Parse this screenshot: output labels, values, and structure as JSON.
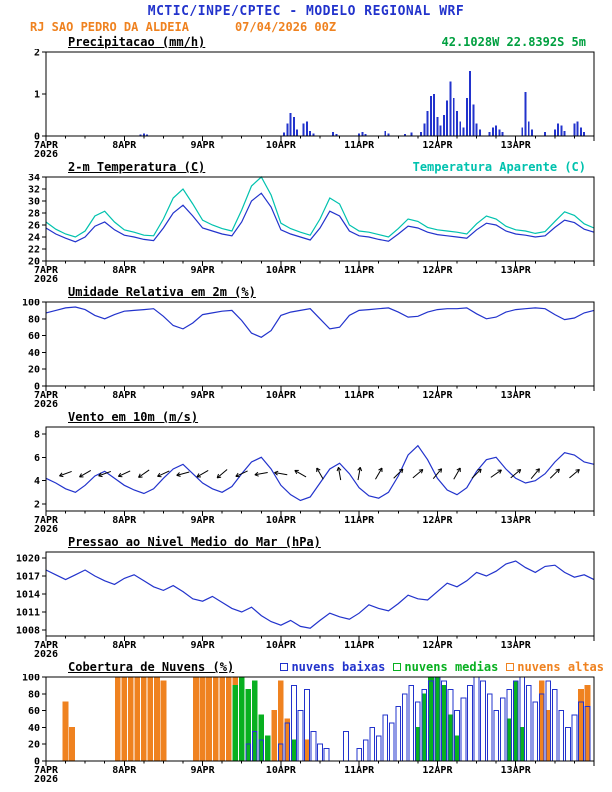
{
  "header": {
    "title": "MCTIC/INPE/CPTEC - MODELO REGIONAL WRF",
    "station": "RJ SAO PEDRO DA ALDEIA",
    "run_datetime": "07/04/2026 00Z",
    "coords": "42.1028W 22.8392S 5m",
    "title_color": "#2233cc",
    "station_color": "#ef8220",
    "coords_color": "#00a040"
  },
  "x_axis": {
    "hours_total": 168,
    "major_tick_hours": 24,
    "minor_tick_hours": 6,
    "day_labels": [
      "7APR",
      "8APR",
      "9APR",
      "10APR",
      "11APR",
      "12APR",
      "13APR"
    ],
    "year_label": "2026"
  },
  "chart_data": [
    {
      "type": "bar",
      "title": "Precipitacao (mm/h)",
      "ylim": [
        0,
        2
      ],
      "yticks": [
        0,
        1,
        2
      ],
      "x_step_hours": 1,
      "bar_color": "#2233cc",
      "values": [
        0,
        0,
        0,
        0,
        0,
        0,
        0,
        0,
        0,
        0,
        0,
        0,
        0,
        0,
        0,
        0,
        0,
        0,
        0,
        0,
        0,
        0,
        0,
        0,
        0,
        0,
        0,
        0,
        0,
        0.04,
        0.06,
        0.03,
        0,
        0,
        0,
        0,
        0,
        0,
        0,
        0,
        0,
        0,
        0,
        0,
        0,
        0,
        0,
        0,
        0,
        0,
        0,
        0,
        0,
        0,
        0,
        0,
        0,
        0,
        0,
        0,
        0,
        0,
        0,
        0,
        0,
        0,
        0,
        0,
        0,
        0,
        0,
        0,
        0,
        0.08,
        0.3,
        0.55,
        0.45,
        0.15,
        0,
        0.3,
        0.35,
        0.12,
        0.06,
        0,
        0,
        0,
        0,
        0,
        0.1,
        0.05,
        0,
        0,
        0,
        0,
        0,
        0,
        0.06,
        0.1,
        0.05,
        0,
        0,
        0,
        0,
        0,
        0.12,
        0.06,
        0,
        0,
        0,
        0,
        0.05,
        0,
        0.08,
        0,
        0,
        0.1,
        0.3,
        0.6,
        0.95,
        1.0,
        0.45,
        0.25,
        0.5,
        0.85,
        1.3,
        0.9,
        0.6,
        0.35,
        0.2,
        0.9,
        1.55,
        0.75,
        0.3,
        0.15,
        0,
        0,
        0.1,
        0.2,
        0.25,
        0.15,
        0.1,
        0,
        0,
        0,
        0,
        0,
        0.2,
        1.05,
        0.35,
        0.15,
        0,
        0,
        0,
        0.1,
        0,
        0,
        0.15,
        0.3,
        0.25,
        0.12,
        0,
        0,
        0.3,
        0.35,
        0.2,
        0.1,
        0,
        0
      ]
    },
    {
      "type": "line",
      "title": "2-m Temperatura (C)",
      "ylim": [
        20,
        34
      ],
      "yticks": [
        20,
        22,
        24,
        26,
        28,
        30,
        32,
        34
      ],
      "x_step_hours": 3,
      "legend": {
        "label": "Temperatura Aparente (C)",
        "color": "#00c2ae"
      },
      "series": [
        {
          "name": "2-m Temperatura (C)",
          "color": "#2233cc",
          "values": [
            25.5,
            24.5,
            23.8,
            23.2,
            24.0,
            25.8,
            26.5,
            25.2,
            24.3,
            24.0,
            23.6,
            23.4,
            25.5,
            28.0,
            29.3,
            27.5,
            25.5,
            25.0,
            24.5,
            24.2,
            26.5,
            30.0,
            31.3,
            29.0,
            25.2,
            24.5,
            24.0,
            23.5,
            25.5,
            28.3,
            27.5,
            25.0,
            24.2,
            24.0,
            23.6,
            23.3,
            24.5,
            25.8,
            25.5,
            24.8,
            24.4,
            24.2,
            24.0,
            23.8,
            25.2,
            26.3,
            26.0,
            25.0,
            24.5,
            24.3,
            24.0,
            24.2,
            25.6,
            26.8,
            26.4,
            25.3,
            24.8
          ]
        },
        {
          "name": "Temperatura Aparente (C)",
          "color": "#00c2ae",
          "values": [
            26.5,
            25.3,
            24.5,
            24.0,
            25.0,
            27.5,
            28.3,
            26.5,
            25.2,
            24.8,
            24.3,
            24.2,
            27.0,
            30.5,
            32.0,
            29.5,
            26.8,
            26.0,
            25.4,
            25.0,
            28.5,
            32.5,
            34.0,
            31.0,
            26.3,
            25.4,
            24.8,
            24.3,
            27.0,
            30.5,
            29.5,
            26.0,
            25.0,
            24.8,
            24.4,
            24.0,
            25.4,
            27.0,
            26.6,
            25.6,
            25.2,
            25.0,
            24.8,
            24.5,
            26.2,
            27.5,
            27.0,
            25.8,
            25.2,
            25.0,
            24.6,
            24.9,
            26.6,
            28.2,
            27.6,
            26.2,
            25.5
          ]
        }
      ]
    },
    {
      "type": "line",
      "title": "Umidade Relativa em 2m (%)",
      "ylim": [
        0,
        100
      ],
      "yticks": [
        0,
        20,
        40,
        60,
        80,
        100
      ],
      "x_step_hours": 3,
      "series": [
        {
          "name": "Umidade Relativa em 2m (%)",
          "color": "#2233cc",
          "values": [
            87,
            90,
            93,
            94,
            91,
            84,
            80,
            85,
            89,
            90,
            91,
            92,
            83,
            72,
            68,
            75,
            85,
            87,
            89,
            90,
            78,
            63,
            58,
            66,
            84,
            88,
            90,
            92,
            80,
            68,
            70,
            84,
            90,
            91,
            92,
            93,
            88,
            82,
            83,
            88,
            91,
            92,
            92,
            93,
            86,
            80,
            82,
            88,
            91,
            92,
            93,
            92,
            85,
            79,
            81,
            87,
            90
          ]
        }
      ]
    },
    {
      "type": "line",
      "title": "Vento em 10m (m/s)",
      "ylim": [
        1.4,
        8.6
      ],
      "yticks": [
        2,
        4,
        6,
        8
      ],
      "x_step_hours": 3,
      "series": [
        {
          "name": "Vento em 10m (m/s)",
          "color": "#2233cc",
          "values": [
            4.2,
            3.8,
            3.3,
            3.0,
            3.6,
            4.4,
            4.8,
            4.2,
            3.6,
            3.2,
            2.9,
            3.3,
            4.2,
            5.0,
            5.4,
            4.6,
            3.8,
            3.3,
            3.0,
            3.5,
            4.6,
            5.6,
            6.0,
            5.0,
            3.6,
            2.8,
            2.3,
            2.6,
            3.8,
            5.0,
            5.5,
            4.6,
            3.4,
            2.7,
            2.5,
            3.0,
            4.4,
            6.2,
            7.0,
            5.8,
            4.2,
            3.2,
            2.8,
            3.4,
            4.8,
            5.8,
            6.0,
            5.0,
            4.2,
            3.8,
            4.0,
            4.6,
            5.6,
            6.4,
            6.2,
            5.6,
            5.4
          ]
        }
      ],
      "barbs": {
        "step_hours": 6,
        "y_value": 4.6,
        "color": "#000000",
        "dirs_deg": [
          195,
          200,
          210,
          200,
          205,
          215,
          205,
          195,
          210,
          220,
          205,
          190,
          170,
          150,
          120,
          100,
          80,
          60,
          45,
          40,
          50,
          60,
          45,
          35,
          40,
          50,
          45,
          40,
          35
        ]
      }
    },
    {
      "type": "line",
      "title": "Pressao ao Nivel Medio do Mar (hPa)",
      "ylim": [
        1007,
        1021
      ],
      "yticks": [
        1008,
        1011,
        1014,
        1017,
        1020
      ],
      "x_step_hours": 3,
      "series": [
        {
          "name": "Pressao ao Nivel Medio do Mar (hPa)",
          "color": "#2233cc",
          "values": [
            1018.0,
            1017.2,
            1016.4,
            1017.2,
            1018.0,
            1017.0,
            1016.2,
            1015.6,
            1016.6,
            1017.2,
            1016.2,
            1015.2,
            1014.6,
            1015.4,
            1014.4,
            1013.2,
            1012.8,
            1013.6,
            1012.6,
            1011.6,
            1011.0,
            1011.8,
            1010.4,
            1009.4,
            1008.8,
            1009.6,
            1008.6,
            1008.3,
            1009.6,
            1010.8,
            1010.2,
            1009.8,
            1010.8,
            1012.2,
            1011.6,
            1011.2,
            1012.4,
            1013.8,
            1013.2,
            1013.0,
            1014.4,
            1015.8,
            1015.2,
            1016.2,
            1017.6,
            1017.0,
            1017.8,
            1019.0,
            1019.5,
            1018.4,
            1017.6,
            1018.6,
            1018.8,
            1017.6,
            1016.8,
            1017.2,
            1016.4
          ]
        }
      ]
    },
    {
      "type": "multibar",
      "title": "Cobertura de Nuvens (%)",
      "ylim": [
        0,
        100
      ],
      "yticks": [
        0,
        20,
        40,
        60,
        80,
        100
      ],
      "x_step_hours": 2,
      "legend": [
        {
          "label": "nuvens baixas",
          "color": "#2233cc"
        },
        {
          "label": "nuvens medias",
          "color": "#08b020"
        },
        {
          "label": "nuvens altas",
          "color": "#ef8220"
        }
      ],
      "series": [
        {
          "name": "nuvens altas",
          "color": "#ef8220",
          "fill": true,
          "values": [
            0,
            0,
            0,
            70,
            40,
            0,
            0,
            0,
            0,
            0,
            0,
            100,
            100,
            100,
            100,
            100,
            100,
            100,
            95,
            0,
            0,
            0,
            0,
            100,
            100,
            100,
            100,
            100,
            100,
            100,
            70,
            0,
            0,
            0,
            0,
            60,
            95,
            50,
            0,
            0,
            25,
            0,
            0,
            0,
            0,
            0,
            0,
            0,
            0,
            0,
            0,
            0,
            0,
            0,
            0,
            0,
            0,
            0,
            0,
            0,
            0,
            0,
            0,
            0,
            0,
            0,
            0,
            0,
            0,
            0,
            0,
            0,
            0,
            0,
            0,
            0,
            95,
            60,
            0,
            0,
            0,
            0,
            85,
            90
          ]
        },
        {
          "name": "nuvens medias",
          "color": "#08b020",
          "fill": true,
          "values": [
            0,
            0,
            0,
            0,
            0,
            0,
            0,
            0,
            0,
            0,
            0,
            0,
            0,
            0,
            0,
            0,
            0,
            0,
            0,
            0,
            0,
            0,
            0,
            0,
            0,
            0,
            0,
            0,
            0,
            90,
            100,
            85,
            95,
            55,
            30,
            0,
            0,
            0,
            25,
            0,
            0,
            0,
            0,
            0,
            0,
            0,
            0,
            0,
            0,
            0,
            0,
            0,
            0,
            0,
            0,
            0,
            0,
            40,
            80,
            100,
            100,
            90,
            55,
            30,
            0,
            0,
            0,
            0,
            0,
            0,
            0,
            50,
            95,
            40,
            0,
            0,
            0,
            0,
            0,
            0,
            0,
            0,
            0,
            0
          ]
        },
        {
          "name": "nuvens baixas",
          "color": "#2233cc",
          "fill": false,
          "values": [
            0,
            0,
            0,
            0,
            0,
            0,
            0,
            0,
            0,
            0,
            0,
            0,
            0,
            0,
            0,
            0,
            0,
            0,
            0,
            0,
            0,
            0,
            0,
            0,
            0,
            0,
            0,
            0,
            0,
            0,
            0,
            20,
            35,
            25,
            0,
            0,
            20,
            45,
            90,
            60,
            85,
            35,
            20,
            15,
            0,
            0,
            35,
            0,
            15,
            25,
            40,
            30,
            55,
            45,
            65,
            80,
            90,
            70,
            85,
            95,
            100,
            95,
            85,
            60,
            75,
            90,
            100,
            95,
            80,
            60,
            75,
            85,
            95,
            100,
            90,
            70,
            80,
            95,
            85,
            60,
            40,
            55,
            70,
            65
          ]
        }
      ]
    }
  ]
}
